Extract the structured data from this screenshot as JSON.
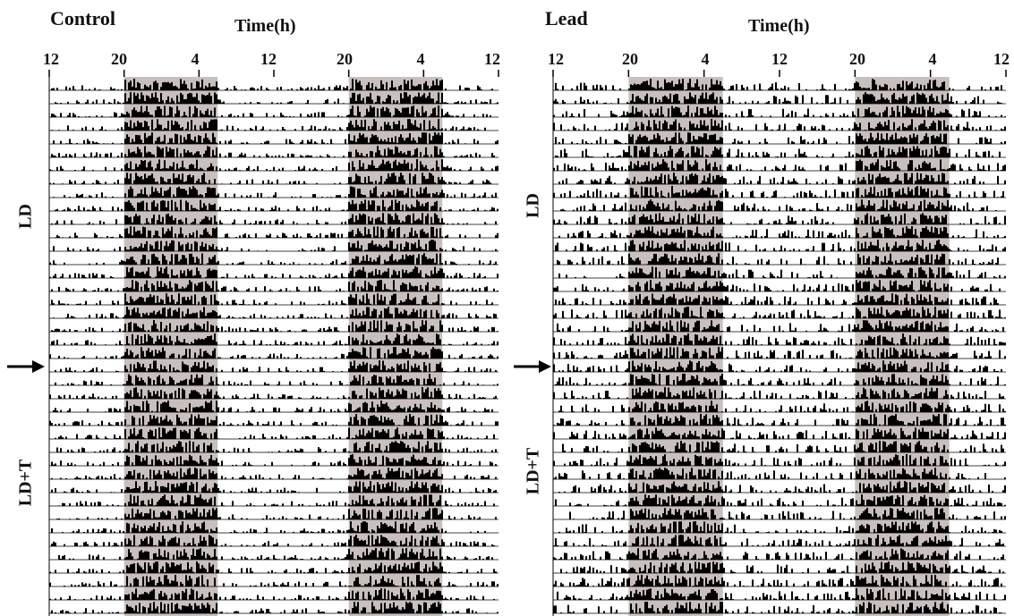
{
  "chart_data": [
    {
      "type": "actogram",
      "title": "Control",
      "xlabel": "Time(h)",
      "x_tick_labels": [
        "12",
        "20",
        "4",
        "12",
        "20",
        "4",
        "12"
      ],
      "x_ticks_hours": [
        0,
        8,
        16,
        24,
        32,
        40,
        48
      ],
      "x_range_hours": [
        0,
        48
      ],
      "plot": "double-plotted",
      "dark_phase_hours": [
        [
          8,
          18
        ],
        [
          32,
          42
        ]
      ],
      "dark_phase_color": "#c9c0bd",
      "activity_color": "#000000",
      "n_days": 40,
      "conditions": [
        {
          "label": "LD",
          "days": [
            1,
            20
          ]
        },
        {
          "label": "LD+T",
          "days": [
            21,
            40
          ]
        }
      ],
      "treatment_arrow_day": 21,
      "activity_level": {
        "night": "high",
        "day": "low"
      }
    },
    {
      "type": "actogram",
      "title": "Lead",
      "xlabel": "Time(h)",
      "x_tick_labels": [
        "12",
        "20",
        "4",
        "12",
        "20",
        "4",
        "12"
      ],
      "x_ticks_hours": [
        0,
        8,
        16,
        24,
        32,
        40,
        48
      ],
      "x_range_hours": [
        0,
        48
      ],
      "plot": "double-plotted",
      "dark_phase_hours": [
        [
          8,
          18
        ],
        [
          32,
          42
        ]
      ],
      "dark_phase_color": "#c9c0bd",
      "activity_color": "#000000",
      "n_days": 40,
      "conditions": [
        {
          "label": "LD",
          "days": [
            1,
            20
          ]
        },
        {
          "label": "LD+T",
          "days": [
            21,
            40
          ]
        }
      ],
      "treatment_arrow_day": 21,
      "activity_level": {
        "night": "high",
        "day": "medium"
      }
    }
  ]
}
